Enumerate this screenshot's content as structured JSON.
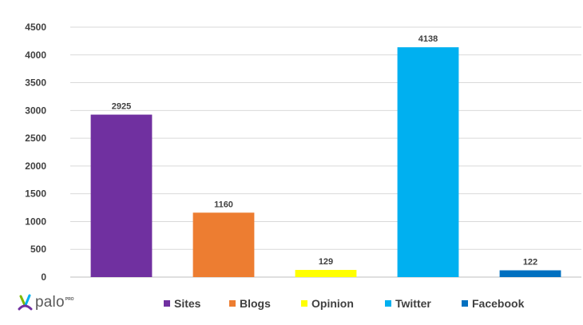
{
  "chart_data": {
    "type": "bar",
    "categories": [
      "Sites",
      "Blogs",
      "Opinion",
      "Twitter",
      "Facebook"
    ],
    "values": [
      2925,
      1160,
      129,
      4138,
      122
    ],
    "data_labels": [
      "2925",
      "1160",
      "129",
      "4138",
      "122"
    ],
    "colors": [
      "#7030a0",
      "#ed7d31",
      "#ffff00",
      "#00b0f0",
      "#0070c0"
    ],
    "ylim": [
      0,
      4500
    ],
    "yticks": [
      0,
      500,
      1000,
      1500,
      2000,
      2500,
      3000,
      3500,
      4000,
      4500
    ],
    "grid": true,
    "legend_position": "bottom",
    "title": "",
    "xlabel": "",
    "ylabel": ""
  },
  "logo": {
    "text": "palo",
    "superscript": "PRO",
    "icon": "palo-leaf-icon",
    "colors": [
      "#7fba00",
      "#7030a0",
      "#00b0f0"
    ]
  }
}
